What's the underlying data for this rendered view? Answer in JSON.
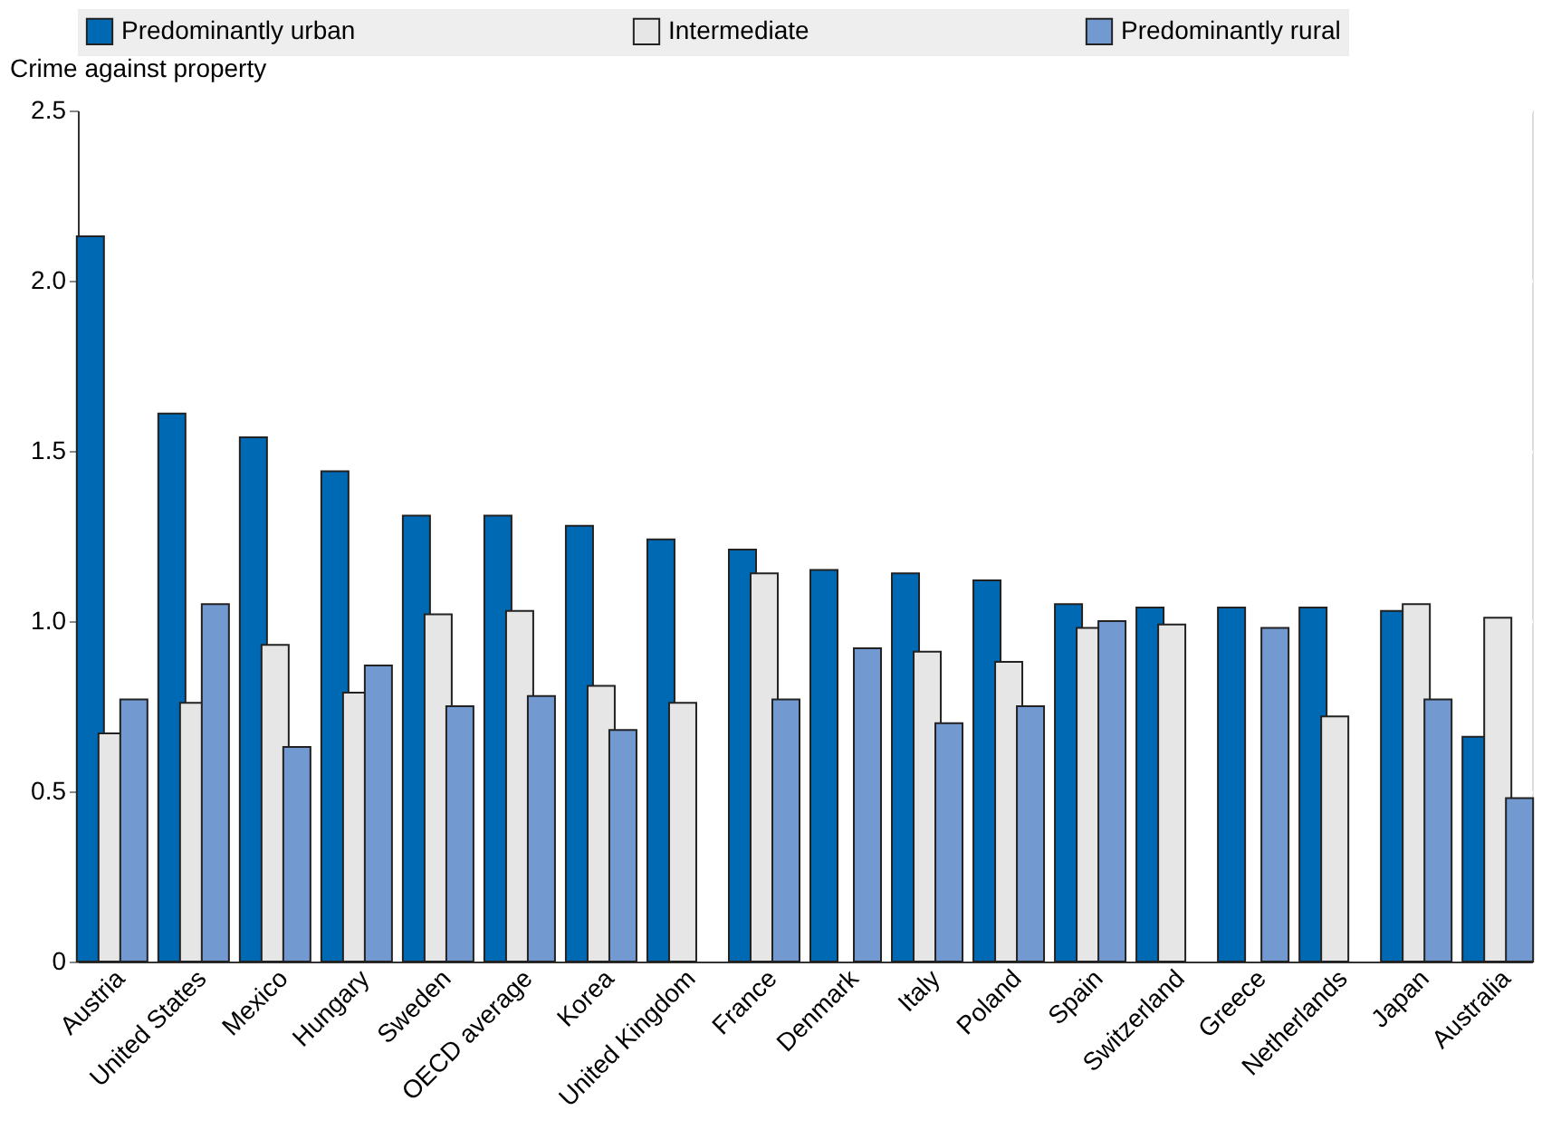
{
  "chart_data": {
    "type": "bar",
    "ylabel": "Crime against property",
    "categories": [
      "Austria",
      "United States",
      "Mexico",
      "Hungary",
      "Sweden",
      "OECD average",
      "Korea",
      "United Kingdom",
      "France",
      "Denmark",
      "Italy",
      "Poland",
      "Spain",
      "Switzerland",
      "Greece",
      "Netherlands",
      "Japan",
      "Australia"
    ],
    "series": [
      {
        "name": "Predominantly urban",
        "color": "#0069b4",
        "values": [
          2.13,
          1.61,
          1.54,
          1.44,
          1.31,
          1.31,
          1.28,
          1.24,
          1.21,
          1.15,
          1.14,
          1.12,
          1.05,
          1.04,
          1.04,
          1.04,
          1.03,
          0.66
        ]
      },
      {
        "name": "Intermediate",
        "color": "#e6e6e6",
        "values": [
          0.67,
          0.76,
          0.93,
          0.79,
          1.02,
          1.03,
          0.81,
          0.76,
          1.14,
          null,
          0.91,
          0.88,
          0.98,
          0.99,
          null,
          0.72,
          1.05,
          1.01
        ]
      },
      {
        "name": "Predominantly rural",
        "color": "#7399d1",
        "values": [
          0.77,
          1.05,
          0.63,
          0.87,
          0.75,
          0.78,
          0.68,
          null,
          0.77,
          0.92,
          0.7,
          0.75,
          1.0,
          null,
          0.98,
          null,
          0.77,
          0.48
        ]
      }
    ],
    "ylim": [
      0,
      2.5
    ],
    "yticks": [
      0,
      0.5,
      {
        "value": 1,
        "label": "1.0"
      },
      1.5,
      {
        "value": 2,
        "label": "2.0"
      },
      2.5
    ],
    "grid": true,
    "legend": "top"
  }
}
